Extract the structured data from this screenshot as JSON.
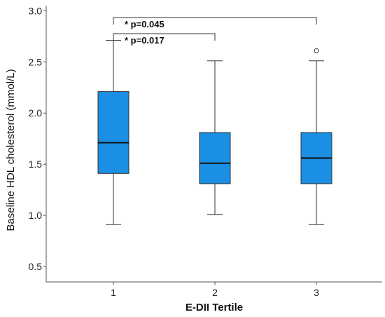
{
  "chart_data": {
    "type": "boxplot",
    "xlabel": "E-DII Tertile",
    "ylabel": "Baseline HDL cholesterol (mmol/L)",
    "ylim": [
      0.35,
      3.05
    ],
    "yticks": [
      0.5,
      1.0,
      1.5,
      2.0,
      2.5,
      3.0
    ],
    "ytick_labels": [
      "0.5",
      "1.0",
      "1.5",
      "2.0",
      "2.5",
      "3.0"
    ],
    "categories": [
      "1",
      "2",
      "3"
    ],
    "boxes": [
      {
        "category": "1",
        "whisker_low": 0.91,
        "q1": 1.41,
        "median": 1.71,
        "q3": 2.21,
        "whisker_high": 2.71,
        "outliers": []
      },
      {
        "category": "2",
        "whisker_low": 1.01,
        "q1": 1.31,
        "median": 1.51,
        "q3": 1.81,
        "whisker_high": 2.51,
        "outliers": []
      },
      {
        "category": "3",
        "whisker_low": 0.91,
        "q1": 1.31,
        "median": 1.56,
        "q3": 1.81,
        "whisker_high": 2.51,
        "outliers": [
          2.61
        ]
      }
    ],
    "significance": [
      {
        "from": "1",
        "to": "3",
        "label": "* p=0.045"
      },
      {
        "from": "1",
        "to": "2",
        "label": "* p=0.017"
      }
    ],
    "box_color": "#1a8fe3",
    "grid": false
  }
}
